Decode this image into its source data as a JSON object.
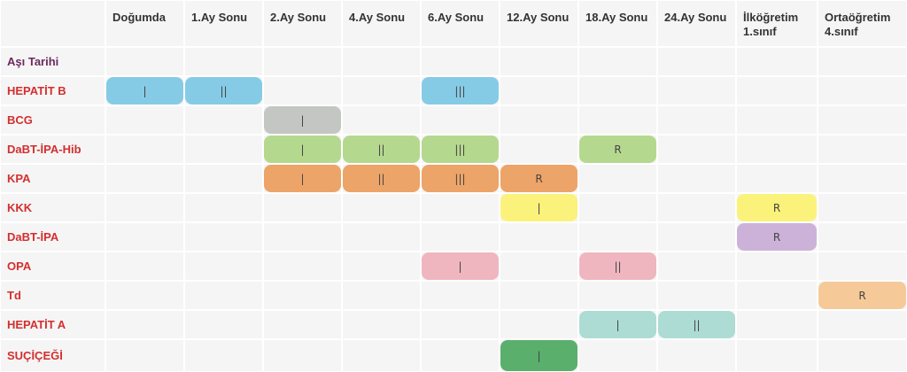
{
  "columns": [
    "Doğumda",
    "1.Ay Sonu",
    "2.Ay Sonu",
    "4.Ay Sonu",
    "6.Ay Sonu",
    "12.Ay Sonu",
    "18.Ay Sonu",
    "24.Ay Sonu",
    "İlköğretim\n1.sınıf",
    "Ortaöğretim\n4.sınıf"
  ],
  "date_row_label": "Aşı Tarihi",
  "colors": {
    "date_label": "#6b2a5e",
    "vaccine_label": "#d32f2f",
    "cell_bg": "#f5f5f5",
    "header_text": "#333333"
  },
  "vaccines": [
    {
      "name": "HEPATİT B",
      "color": "#86cbe6",
      "doses": [
        {
          "col": 0,
          "label": "|"
        },
        {
          "col": 1,
          "label": "||"
        },
        {
          "col": 4,
          "label": "|||"
        }
      ]
    },
    {
      "name": "BCG",
      "color": "#c4c6c4",
      "doses": [
        {
          "col": 2,
          "label": "|"
        }
      ]
    },
    {
      "name": "DaBT-İPA-Hib",
      "color": "#b5d88f",
      "doses": [
        {
          "col": 2,
          "label": "|"
        },
        {
          "col": 3,
          "label": "||"
        },
        {
          "col": 4,
          "label": "|||"
        },
        {
          "col": 6,
          "label": "R"
        }
      ]
    },
    {
      "name": "KPA",
      "color": "#eda468",
      "doses": [
        {
          "col": 2,
          "label": "|"
        },
        {
          "col": 3,
          "label": "||"
        },
        {
          "col": 4,
          "label": "|||"
        },
        {
          "col": 5,
          "label": "R"
        }
      ]
    },
    {
      "name": "KKK",
      "color": "#fbf27b",
      "doses": [
        {
          "col": 5,
          "label": "|"
        },
        {
          "col": 8,
          "label": "R"
        }
      ]
    },
    {
      "name": "DaBT-İPA",
      "color": "#ccb2d8",
      "doses": [
        {
          "col": 8,
          "label": "R"
        }
      ]
    },
    {
      "name": "OPA",
      "color": "#efb6c0",
      "doses": [
        {
          "col": 4,
          "label": "|"
        },
        {
          "col": 6,
          "label": "||"
        }
      ]
    },
    {
      "name": "Td",
      "color": "#f6c998",
      "doses": [
        {
          "col": 9,
          "label": "R"
        }
      ]
    },
    {
      "name": "HEPATİT A",
      "color": "#acdcd3",
      "doses": [
        {
          "col": 6,
          "label": "|"
        },
        {
          "col": 7,
          "label": "||"
        }
      ]
    },
    {
      "name": "SUÇİÇEĞİ",
      "color": "#5aaf6c",
      "doses": [
        {
          "col": 5,
          "label": "|"
        }
      ]
    }
  ]
}
